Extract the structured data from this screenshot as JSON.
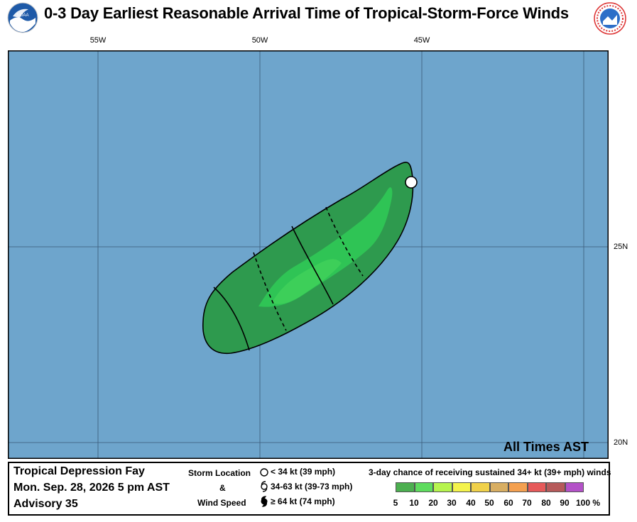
{
  "title": "0-3 Day Earliest Reasonable Arrival Time of Tropical-Storm-Force Winds",
  "logos": {
    "left": "noaa-logo",
    "right": "nws-logo"
  },
  "map": {
    "longitude_labels": [
      "55W",
      "50W",
      "45W"
    ],
    "latitude_labels": [
      "25N",
      "20N"
    ],
    "note": "All Times AST",
    "ocean_color": "#6ea5cc",
    "gridline_color": "#3a5a78"
  },
  "info": {
    "storm_name": "Tropical Depression Fay",
    "issue_time": "Mon. Sep. 28, 2026  5 pm AST",
    "advisory": "Advisory 35",
    "storm_location_title": [
      "Storm Location",
      "&",
      "Wind Speed"
    ],
    "storm_location_legend": [
      {
        "icon": "open-circle-icon",
        "label": "< 34 kt (39 mph)"
      },
      {
        "icon": "tropical-storm-symbol-icon",
        "label": "34-63 kt (39-73 mph)"
      },
      {
        "icon": "hurricane-symbol-icon",
        "label": "≥ 64 kt (74 mph)"
      }
    ],
    "chance_title": "3-day chance of receiving sustained 34+ kt (39+ mph) winds",
    "scale": {
      "labels": [
        "5",
        "10",
        "20",
        "30",
        "40",
        "50",
        "60",
        "70",
        "80",
        "90",
        "100 %"
      ],
      "colors": [
        "#4caf50",
        "#5edc5e",
        "#b6f44e",
        "#f4f34c",
        "#f0d14a",
        "#d8ae62",
        "#f4a050",
        "#e65a5a",
        "#b65a5a",
        "#b452c8"
      ]
    }
  },
  "wind_area": {
    "outer_color": "#2e9a4e",
    "inner_color": "#2fc455",
    "core_color": "#3dcf59",
    "current_position": "open-circle-icon"
  }
}
